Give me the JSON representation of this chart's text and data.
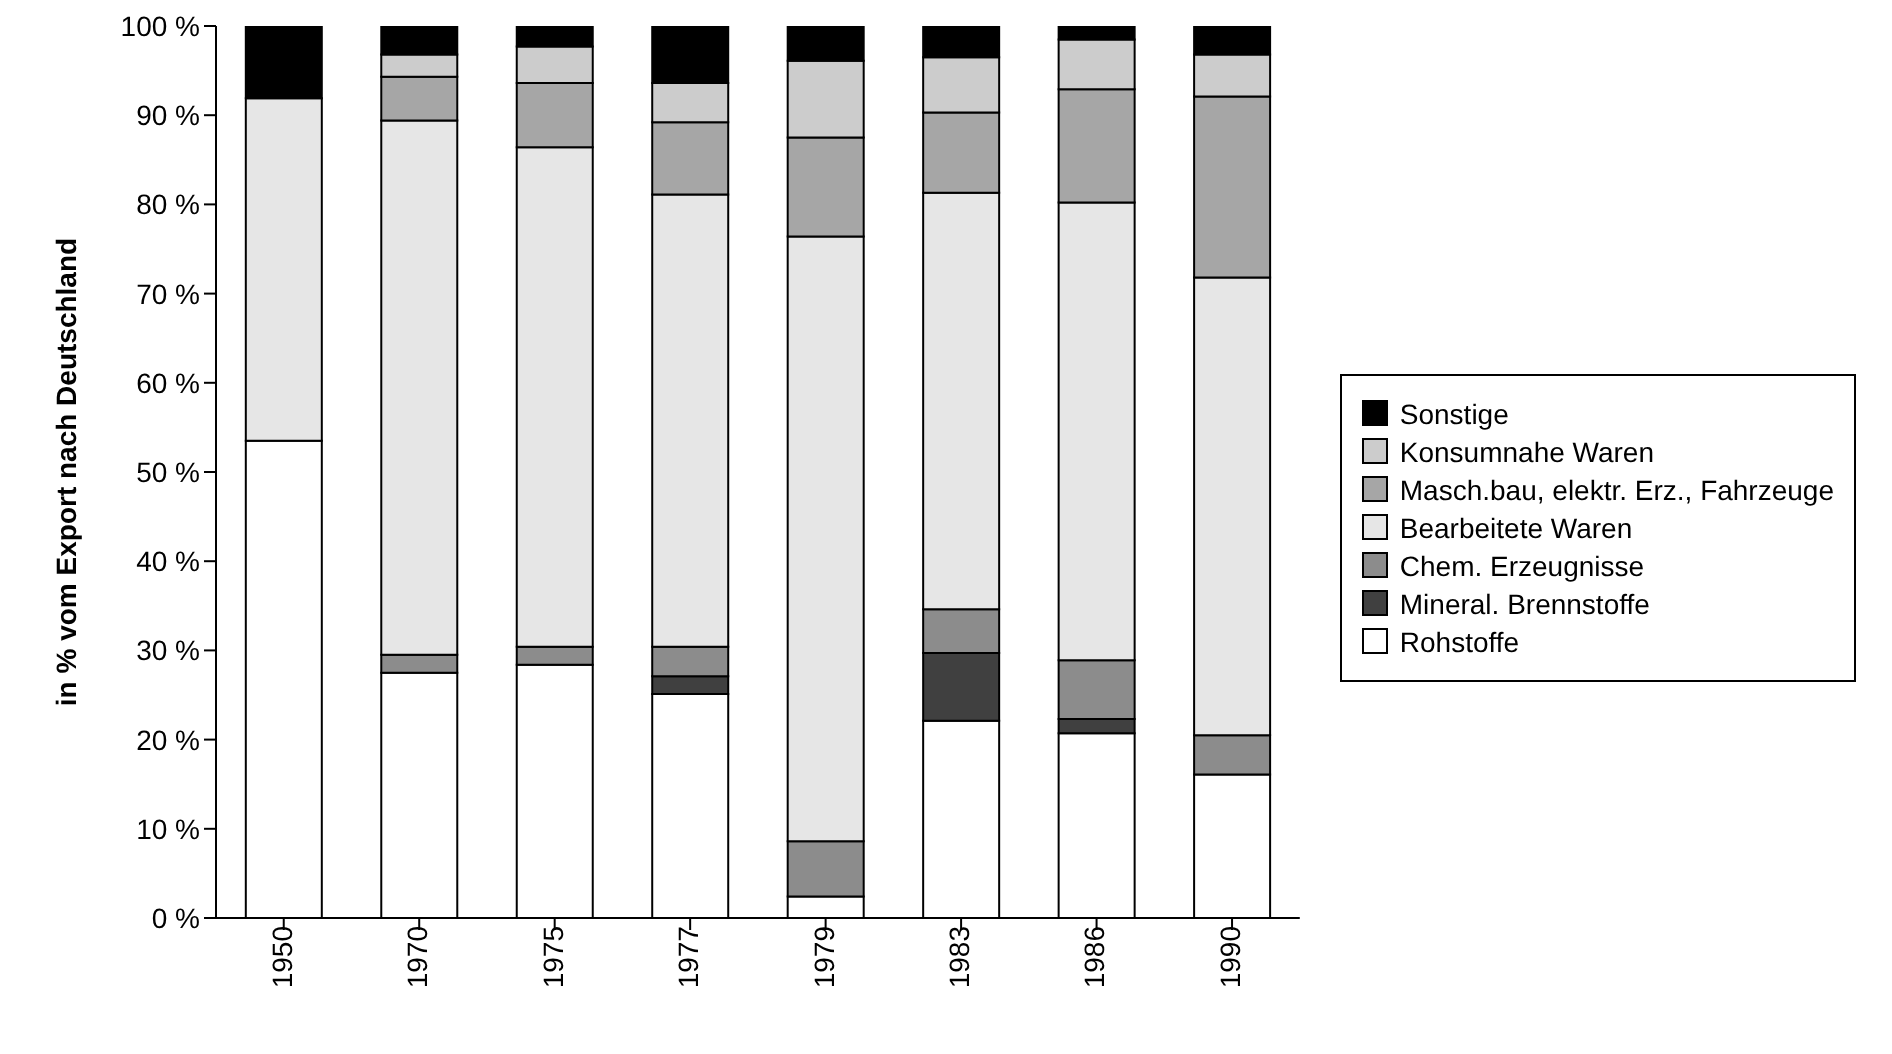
{
  "chart_data": {
    "type": "bar",
    "stacked": true,
    "ylabel": "in % vom Export nach Deutschland",
    "categories": [
      "1950",
      "1970",
      "1975",
      "1977",
      "1979",
      "1983",
      "1986",
      "1990"
    ],
    "series": [
      {
        "name": "Rohstoffe",
        "color": "#ffffff",
        "values": [
          53.5,
          27.5,
          28.4,
          25.1,
          2.4,
          22.1,
          20.7,
          16.1
        ]
      },
      {
        "name": "Mineral. Brennstoffe",
        "color": "#404040",
        "values": [
          0,
          0,
          0,
          2,
          0,
          7.6,
          1.6,
          0
        ]
      },
      {
        "name": "Chem. Erzeugnisse",
        "color": "#8c8c8c",
        "values": [
          0,
          2,
          2,
          3.3,
          6.2,
          4.9,
          6.6,
          4.4
        ]
      },
      {
        "name": "Bearbeitete Waren",
        "color": "#e6e6e6",
        "values": [
          38.4,
          59.9,
          56,
          50.7,
          67.8,
          46.7,
          51.3,
          51.3
        ]
      },
      {
        "name": "Masch.bau, elektr. Erz., Fahrzeuge",
        "color": "#a6a6a6",
        "values": [
          0,
          4.9,
          7.2,
          8.1,
          11.1,
          9,
          12.7,
          20.3
        ]
      },
      {
        "name": "Konsumnahe Waren",
        "color": "#cccccc",
        "values": [
          0,
          2.5,
          4.1,
          4.4,
          8.6,
          6.2,
          5.6,
          4.7
        ]
      },
      {
        "name": "Sonstige",
        "color": "#000000",
        "values": [
          8.1,
          3.2,
          2.3,
          6.4,
          3.9,
          3.5,
          1.5,
          3.2
        ]
      }
    ],
    "ylim": [
      0,
      100
    ],
    "yticks": [
      {
        "value": 0,
        "label": "0 %"
      },
      {
        "value": 10,
        "label": "10 %"
      },
      {
        "value": 20,
        "label": "20 %"
      },
      {
        "value": 30,
        "label": "30 %"
      },
      {
        "value": 40,
        "label": "40 %"
      },
      {
        "value": 50,
        "label": "50 %"
      },
      {
        "value": 60,
        "label": "60 %"
      },
      {
        "value": 70,
        "label": "70 %"
      },
      {
        "value": 80,
        "label": "80 %"
      },
      {
        "value": 90,
        "label": "90 %"
      },
      {
        "value": 100,
        "label": "100 %"
      }
    ],
    "legend": "right",
    "grid": false
  }
}
